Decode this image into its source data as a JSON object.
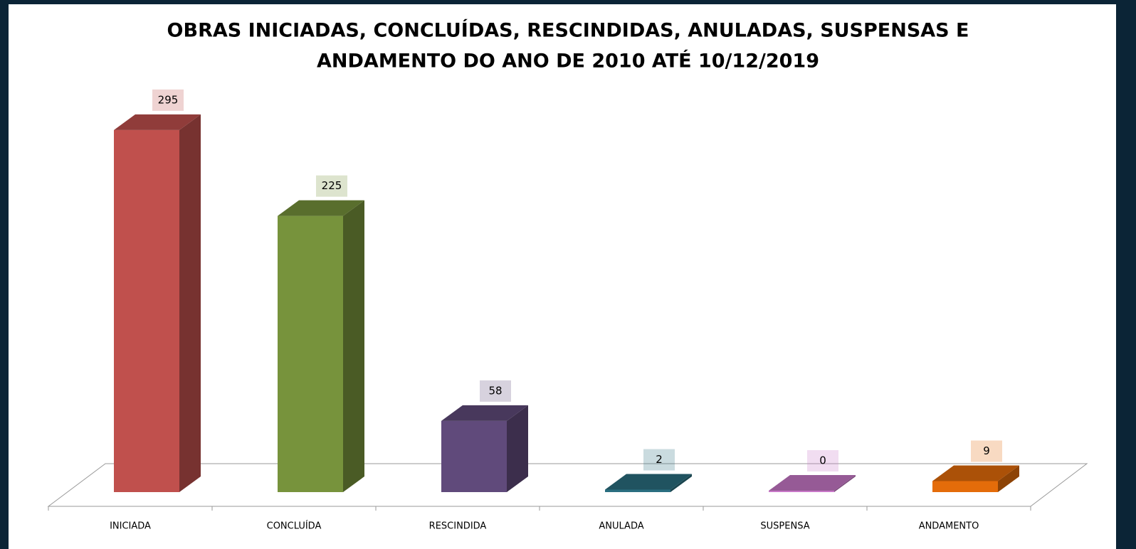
{
  "chart_data": {
    "type": "bar3d",
    "title": [
      "OBRAS INICIADAS, CONCLUÍDAS, RESCINDIDAS, ANULADAS, SUSPENSAS E",
      "ANDAMENTO DO ANO DE 2010 ATÉ 10/12/2019"
    ],
    "categories": [
      "INICIADA",
      "CONCLUÍDA",
      "RESCINDIDA",
      "ANULADA",
      "SUSPENSA",
      "ANDAMENTO"
    ],
    "values": [
      295,
      225,
      58,
      2,
      0,
      9
    ],
    "colors": [
      "#c0504d",
      "#77933c",
      "#604a7b",
      "#2a6f80",
      "#c878c8",
      "#e46c0a"
    ]
  }
}
